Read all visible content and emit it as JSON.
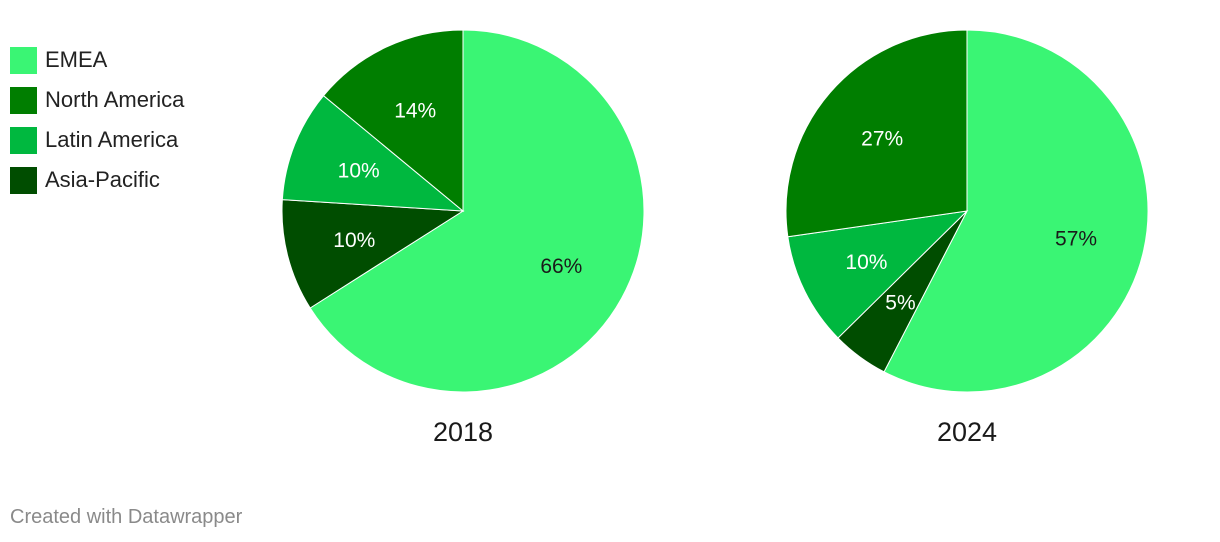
{
  "chart_data": [
    {
      "type": "pie",
      "title": "2018",
      "categories": [
        "EMEA",
        "North America",
        "Latin America",
        "Asia-Pacific"
      ],
      "values": [
        66,
        14,
        10,
        10
      ],
      "labels": [
        "66%",
        "14%",
        "10%",
        "10%"
      ],
      "colors": [
        "#3af574",
        "#007e00",
        "#00b83f",
        "#004d00"
      ],
      "label_colors": [
        "#1a1a1a",
        "#ffffff",
        "#ffffff",
        "#ffffff"
      ]
    },
    {
      "type": "pie",
      "title": "2024",
      "categories": [
        "EMEA",
        "North America",
        "Latin America",
        "Asia-Pacific"
      ],
      "values": [
        57,
        27,
        10,
        5
      ],
      "labels": [
        "57%",
        "27%",
        "10%",
        "5%"
      ],
      "colors": [
        "#3af574",
        "#007e00",
        "#00b83f",
        "#004d00"
      ],
      "label_colors": [
        "#1a1a1a",
        "#ffffff",
        "#ffffff",
        "#ffffff"
      ]
    }
  ],
  "legend": [
    {
      "label": "EMEA",
      "color": "#3af574"
    },
    {
      "label": "North America",
      "color": "#007e00"
    },
    {
      "label": "Latin America",
      "color": "#00b83f"
    },
    {
      "label": "Asia-Pacific",
      "color": "#004d00"
    }
  ],
  "footer": "Created with Datawrapper"
}
